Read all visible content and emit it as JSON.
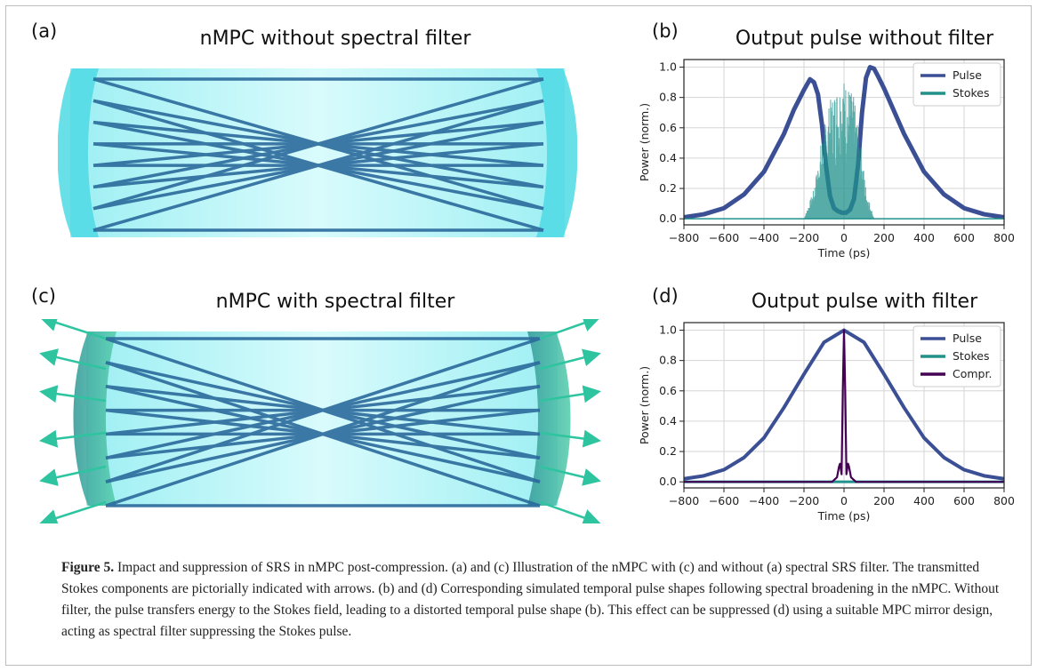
{
  "panels": {
    "a": {
      "letter": "(a)",
      "title": "nMPC without spectral filter"
    },
    "b": {
      "letter": "(b)",
      "title": "Output pulse without filter"
    },
    "c": {
      "letter": "(c)",
      "title": "nMPC with spectral filter"
    },
    "d": {
      "letter": "(d)",
      "title": "Output pulse with filter"
    }
  },
  "caption": {
    "label": "Figure 5.",
    "text": "Impact and suppression of SRS in nMPC post-compression. (a) and (c) Illustration of the nMPC with (c) and without (a) spectral SRS filter. The transmitted Stokes components are pictorially indicated with arrows. (b) and (d) Corresponding simulated temporal pulse shapes following spectral broadening in the nMPC. Without filter, the pulse transfers energy to the Stokes field, leading to a distorted temporal pulse shape (b). This effect can be suppressed (d) using a suitable MPC mirror design, acting as spectral filter suppressing the Stokes pulse."
  },
  "colors": {
    "pulse": "#3b4f95",
    "stokes": "#21918c",
    "compr": "#440154",
    "cell": "#a6f1f4",
    "mirror": "#4fd9e4"
  },
  "chart_data": [
    {
      "type": "line",
      "panel": "b",
      "title": "Output pulse without filter",
      "xlabel": "Time (ps)",
      "ylabel": "Power (norm.)",
      "xlim": [
        -800,
        800
      ],
      "ylim": [
        -0.04,
        1.05
      ],
      "xticks": [
        -800,
        -600,
        -400,
        -200,
        0,
        200,
        400,
        600,
        800
      ],
      "yticks": [
        0.0,
        0.2,
        0.4,
        0.6,
        0.8,
        1.0
      ],
      "grid": true,
      "legend": "top-right",
      "series": [
        {
          "name": "Pulse",
          "x": [
            -800,
            -700,
            -600,
            -500,
            -400,
            -300,
            -250,
            -200,
            -170,
            -150,
            -130,
            -110,
            -90,
            -70,
            -50,
            -30,
            -10,
            10,
            30,
            50,
            70,
            90,
            110,
            130,
            150,
            170,
            200,
            250,
            300,
            400,
            500,
            600,
            700,
            800
          ],
          "y": [
            0.01,
            0.03,
            0.07,
            0.16,
            0.31,
            0.56,
            0.72,
            0.85,
            0.92,
            0.9,
            0.82,
            0.62,
            0.35,
            0.15,
            0.07,
            0.05,
            0.04,
            0.04,
            0.06,
            0.13,
            0.35,
            0.7,
            0.93,
            1.0,
            0.99,
            0.94,
            0.86,
            0.71,
            0.56,
            0.31,
            0.16,
            0.07,
            0.03,
            0.01
          ]
        },
        {
          "name": "Stokes",
          "envelope_x": [
            -800,
            -200,
            -150,
            -110,
            -70,
            -40,
            -10,
            20,
            50,
            80,
            110,
            150,
            800
          ],
          "envelope_y": [
            0.0,
            0.0,
            0.2,
            0.55,
            0.78,
            0.88,
            0.95,
            0.9,
            0.8,
            0.55,
            0.2,
            0.0,
            0.0
          ]
        }
      ]
    },
    {
      "type": "line",
      "panel": "d",
      "title": "Output pulse with filter",
      "xlabel": "Time (ps)",
      "ylabel": "Power (norm.)",
      "xlim": [
        -800,
        800
      ],
      "ylim": [
        -0.04,
        1.05
      ],
      "xticks": [
        -800,
        -600,
        -400,
        -200,
        0,
        200,
        400,
        600,
        800
      ],
      "yticks": [
        0.0,
        0.2,
        0.4,
        0.6,
        0.8,
        1.0
      ],
      "grid": true,
      "legend": "top-right",
      "series": [
        {
          "name": "Pulse",
          "x": [
            -800,
            -700,
            -600,
            -500,
            -400,
            -300,
            -200,
            -100,
            0,
            100,
            200,
            300,
            400,
            500,
            600,
            700,
            800
          ],
          "y": [
            0.02,
            0.04,
            0.08,
            0.16,
            0.29,
            0.49,
            0.71,
            0.92,
            1.0,
            0.92,
            0.71,
            0.49,
            0.29,
            0.16,
            0.08,
            0.04,
            0.02
          ]
        },
        {
          "name": "Stokes",
          "x": [
            -800,
            800
          ],
          "y": [
            0.0,
            0.0
          ]
        },
        {
          "name": "Compr.",
          "x": [
            -800,
            -60,
            -35,
            -25,
            -20,
            -12,
            -6,
            0,
            6,
            12,
            20,
            25,
            35,
            60,
            800
          ],
          "y": [
            0.0,
            0.0,
            0.03,
            0.1,
            0.12,
            0.05,
            0.6,
            1.0,
            0.6,
            0.05,
            0.12,
            0.1,
            0.03,
            0.0,
            0.0
          ]
        }
      ]
    }
  ]
}
